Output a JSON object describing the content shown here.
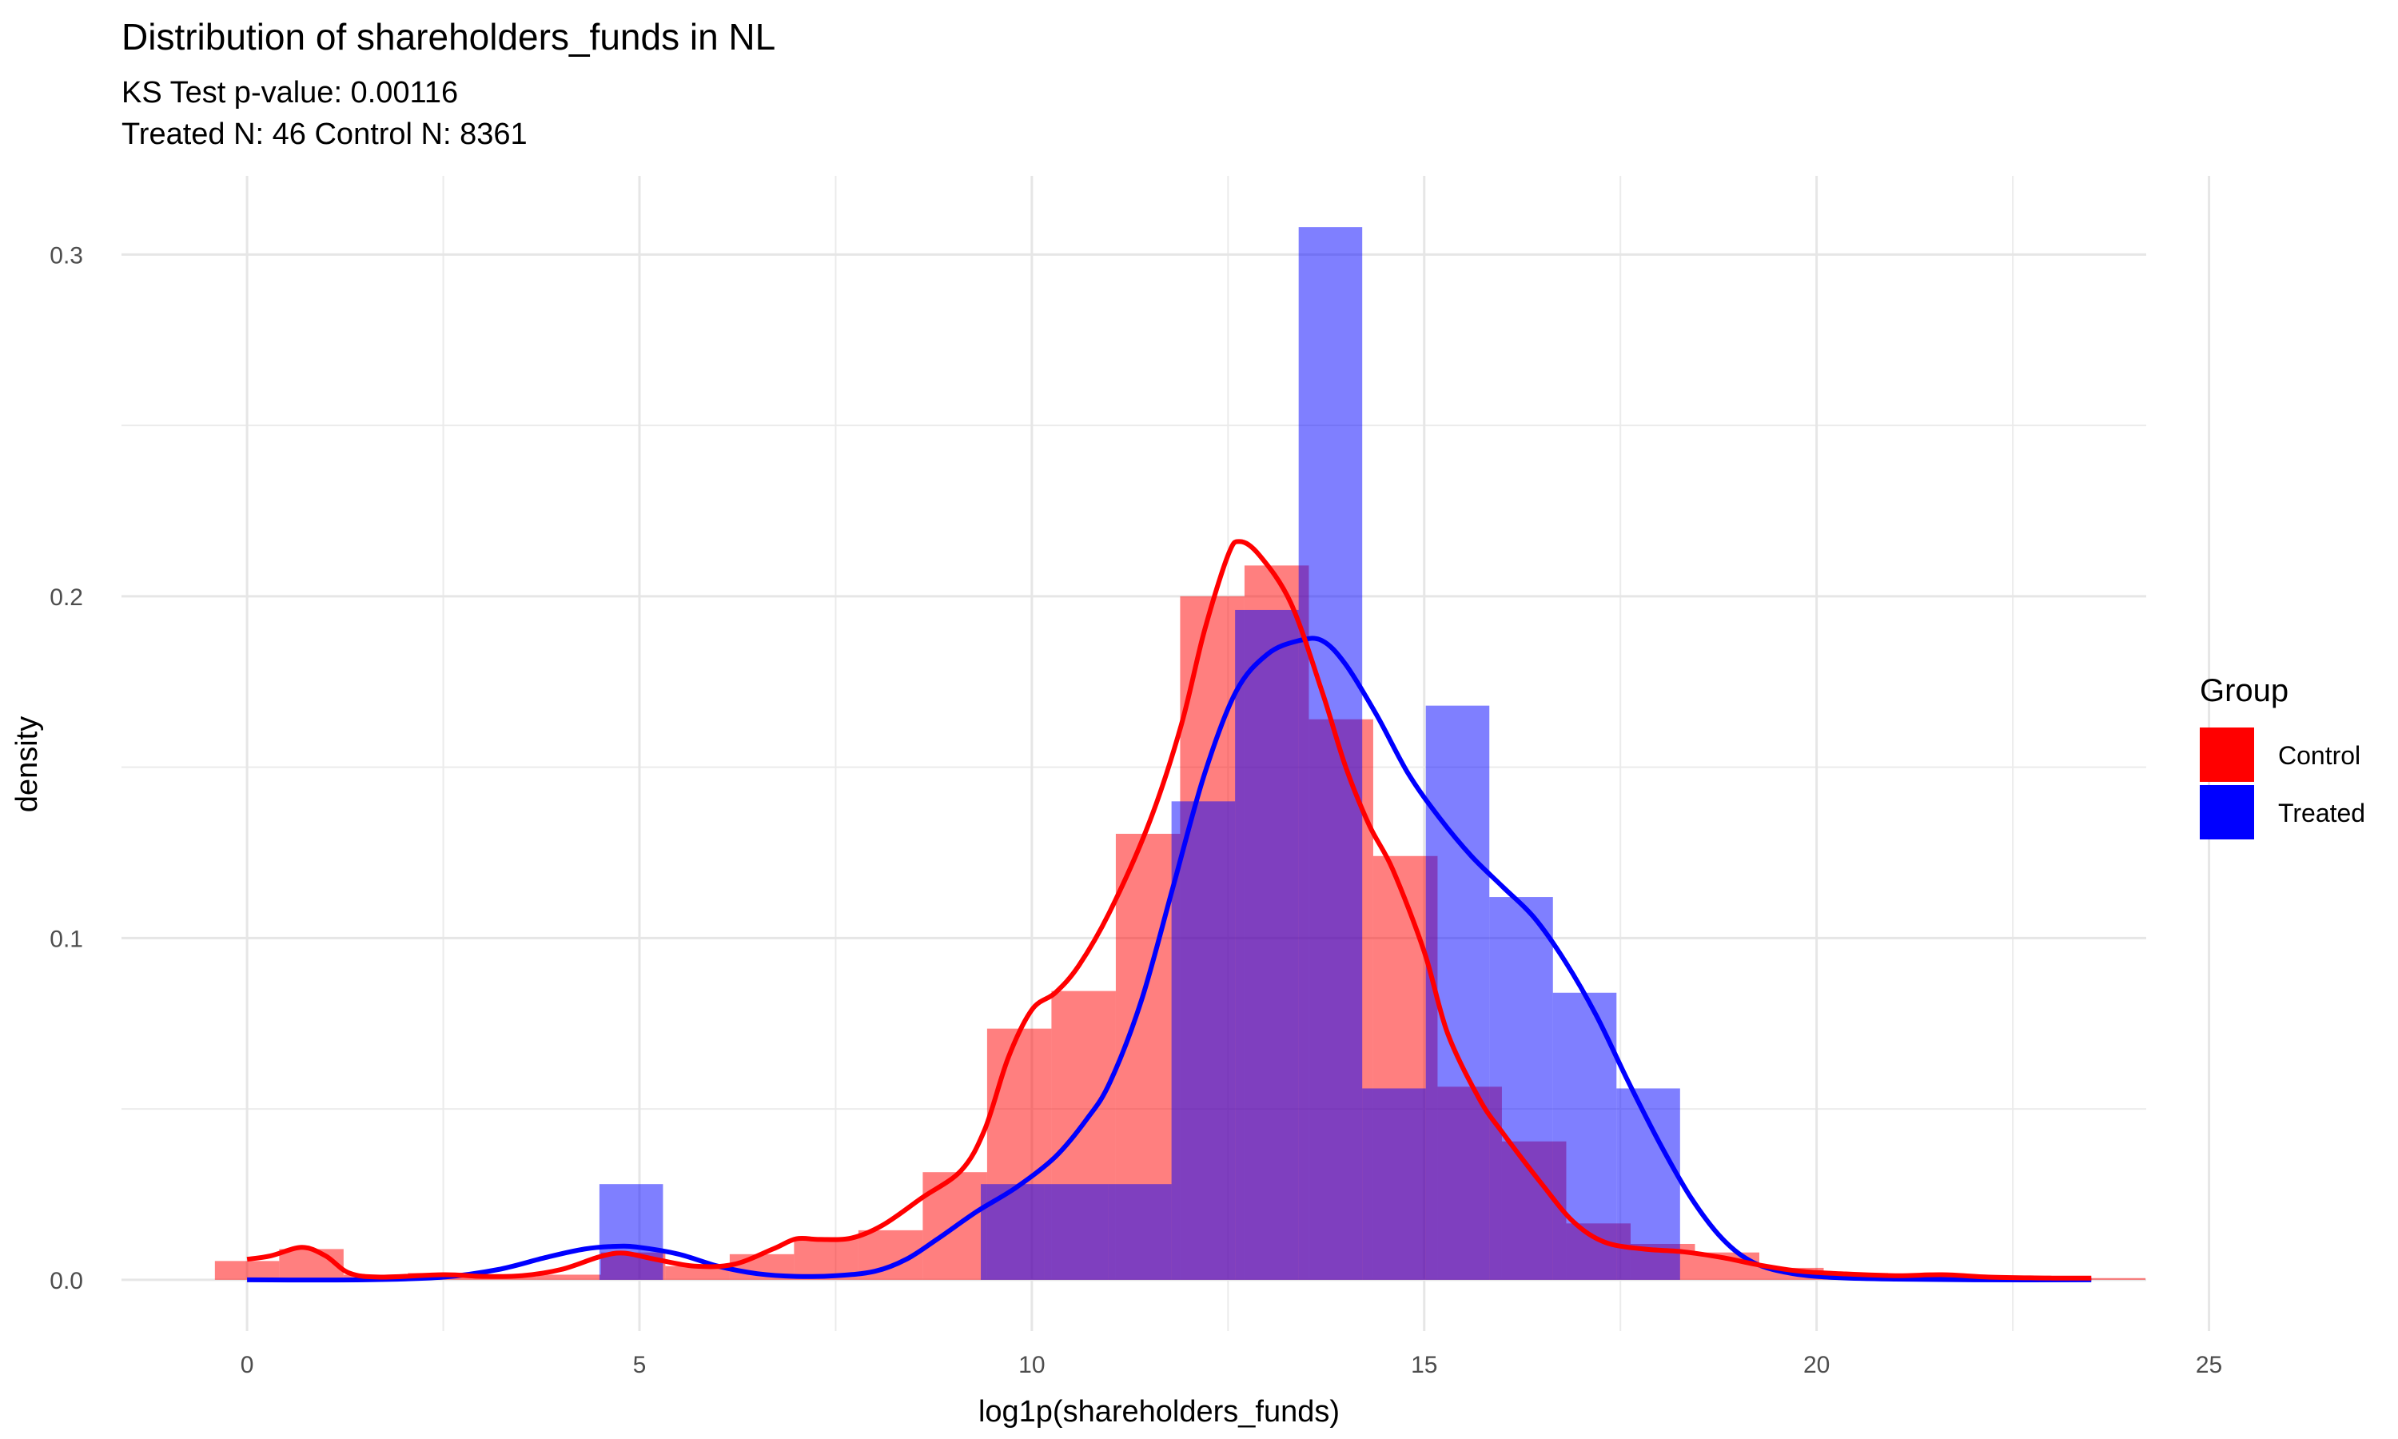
{
  "chart_data": {
    "type": "histogram",
    "title": "Distribution of shareholders_funds in NL",
    "subtitle_lines": [
      "KS Test p-value: 0.00116",
      "Treated N: 46 Control N: 8361"
    ],
    "xlabel": "log1p(shareholders_funds)",
    "ylabel": "density",
    "xlim": [
      -1.6,
      24.2
    ],
    "ylim": [
      -0.015,
      0.323
    ],
    "x_ticks": [
      0,
      5,
      10,
      15,
      20,
      25
    ],
    "x_tick_labels": [
      "0",
      "5",
      "10",
      "15",
      "20",
      "25"
    ],
    "y_ticks": [
      0.0,
      0.1,
      0.2,
      0.3
    ],
    "y_tick_labels": [
      "0.0",
      "0.1",
      "0.2",
      "0.3"
    ],
    "grid": true,
    "legend": {
      "title": "Group",
      "position": "right"
    },
    "series": [
      {
        "name": "Control",
        "color": "#FF0000",
        "bin_width": 0.82,
        "bins": [
          {
            "x0": -0.41,
            "x1": 0.41,
            "density": 0.0055
          },
          {
            "x0": 0.41,
            "x1": 1.23,
            "density": 0.009
          },
          {
            "x0": 1.23,
            "x1": 2.05,
            "density": 0.0015
          },
          {
            "x0": 2.05,
            "x1": 2.87,
            "density": 0.002
          },
          {
            "x0": 2.87,
            "x1": 3.69,
            "density": 0.001
          },
          {
            "x0": 3.69,
            "x1": 4.51,
            "density": 0.0015
          },
          {
            "x0": 4.51,
            "x1": 5.33,
            "density": 0.008
          },
          {
            "x0": 5.33,
            "x1": 6.15,
            "density": 0.004
          },
          {
            "x0": 6.15,
            "x1": 6.97,
            "density": 0.0075
          },
          {
            "x0": 6.97,
            "x1": 7.79,
            "density": 0.0125
          },
          {
            "x0": 7.79,
            "x1": 8.61,
            "density": 0.0145
          },
          {
            "x0": 8.61,
            "x1": 9.43,
            "density": 0.0315
          },
          {
            "x0": 9.43,
            "x1": 10.25,
            "density": 0.0735
          },
          {
            "x0": 10.25,
            "x1": 11.07,
            "density": 0.0845
          },
          {
            "x0": 11.07,
            "x1": 11.89,
            "density": 0.1305
          },
          {
            "x0": 11.89,
            "x1": 12.71,
            "density": 0.2
          },
          {
            "x0": 12.71,
            "x1": 13.53,
            "density": 0.209
          },
          {
            "x0": 13.53,
            "x1": 14.35,
            "density": 0.164
          },
          {
            "x0": 14.35,
            "x1": 15.17,
            "density": 0.124
          },
          {
            "x0": 15.17,
            "x1": 15.99,
            "density": 0.0565
          },
          {
            "x0": 15.99,
            "x1": 16.81,
            "density": 0.0405
          },
          {
            "x0": 16.81,
            "x1": 17.63,
            "density": 0.0165
          },
          {
            "x0": 17.63,
            "x1": 18.45,
            "density": 0.0105
          },
          {
            "x0": 18.45,
            "x1": 19.27,
            "density": 0.008
          },
          {
            "x0": 19.27,
            "x1": 20.09,
            "density": 0.0035
          },
          {
            "x0": 20.09,
            "x1": 20.91,
            "density": 0.002
          },
          {
            "x0": 20.91,
            "x1": 21.73,
            "density": 0.0015
          },
          {
            "x0": 21.73,
            "x1": 22.55,
            "density": 0.001
          },
          {
            "x0": 22.55,
            "x1": 23.37,
            "density": 0.0008
          },
          {
            "x0": 23.37,
            "x1": 24.19,
            "density": 0.0005
          }
        ],
        "density_curve": [
          [
            0.0,
            0.006
          ],
          [
            0.3,
            0.007
          ],
          [
            0.7,
            0.0095
          ],
          [
            1.0,
            0.007
          ],
          [
            1.3,
            0.002
          ],
          [
            1.7,
            0.0008
          ],
          [
            2.5,
            0.0015
          ],
          [
            3.0,
            0.001
          ],
          [
            3.5,
            0.0012
          ],
          [
            4.0,
            0.003
          ],
          [
            4.5,
            0.0068
          ],
          [
            4.8,
            0.0078
          ],
          [
            5.2,
            0.006
          ],
          [
            5.7,
            0.004
          ],
          [
            6.2,
            0.0045
          ],
          [
            6.7,
            0.009
          ],
          [
            7.0,
            0.012
          ],
          [
            7.3,
            0.0118
          ],
          [
            7.7,
            0.0122
          ],
          [
            8.1,
            0.016
          ],
          [
            8.6,
            0.024
          ],
          [
            9.1,
            0.032
          ],
          [
            9.4,
            0.044
          ],
          [
            9.7,
            0.065
          ],
          [
            10.0,
            0.079
          ],
          [
            10.3,
            0.084
          ],
          [
            10.6,
            0.092
          ],
          [
            11.0,
            0.108
          ],
          [
            11.5,
            0.134
          ],
          [
            11.9,
            0.162
          ],
          [
            12.2,
            0.19
          ],
          [
            12.5,
            0.212
          ],
          [
            12.65,
            0.216
          ],
          [
            12.9,
            0.212
          ],
          [
            13.3,
            0.198
          ],
          [
            13.7,
            0.172
          ],
          [
            14.0,
            0.15
          ],
          [
            14.3,
            0.133
          ],
          [
            14.6,
            0.12
          ],
          [
            15.0,
            0.096
          ],
          [
            15.3,
            0.072
          ],
          [
            15.7,
            0.053
          ],
          [
            16.0,
            0.043
          ],
          [
            16.5,
            0.028
          ],
          [
            16.9,
            0.017
          ],
          [
            17.3,
            0.011
          ],
          [
            17.8,
            0.009
          ],
          [
            18.3,
            0.0082
          ],
          [
            18.8,
            0.0065
          ],
          [
            19.3,
            0.0042
          ],
          [
            19.8,
            0.0025
          ],
          [
            20.3,
            0.0018
          ],
          [
            21.0,
            0.0012
          ],
          [
            21.6,
            0.0015
          ],
          [
            22.2,
            0.0008
          ],
          [
            23.0,
            0.0005
          ],
          [
            23.5,
            0.0005
          ]
        ]
      },
      {
        "name": "Treated",
        "color": "#0000FF",
        "bin_width": 0.81,
        "bins": [
          {
            "x0": 4.49,
            "x1": 5.3,
            "density": 0.028
          },
          {
            "x0": 9.35,
            "x1": 10.16,
            "density": 0.028
          },
          {
            "x0": 10.16,
            "x1": 10.97,
            "density": 0.028
          },
          {
            "x0": 10.97,
            "x1": 11.78,
            "density": 0.028
          },
          {
            "x0": 11.78,
            "x1": 12.59,
            "density": 0.14
          },
          {
            "x0": 12.59,
            "x1": 13.4,
            "density": 0.196
          },
          {
            "x0": 13.4,
            "x1": 14.21,
            "density": 0.308
          },
          {
            "x0": 14.21,
            "x1": 15.02,
            "density": 0.056
          },
          {
            "x0": 15.02,
            "x1": 15.83,
            "density": 0.168
          },
          {
            "x0": 15.83,
            "x1": 16.64,
            "density": 0.112
          },
          {
            "x0": 16.64,
            "x1": 17.45,
            "density": 0.084
          },
          {
            "x0": 17.45,
            "x1": 18.26,
            "density": 0.056
          }
        ],
        "density_curve": [
          [
            0.0,
            0.0
          ],
          [
            1.5,
            0.0
          ],
          [
            2.5,
            0.0008
          ],
          [
            3.2,
            0.003
          ],
          [
            3.8,
            0.0065
          ],
          [
            4.3,
            0.009
          ],
          [
            4.7,
            0.0098
          ],
          [
            5.0,
            0.0095
          ],
          [
            5.5,
            0.0075
          ],
          [
            6.0,
            0.004
          ],
          [
            6.5,
            0.0018
          ],
          [
            7.0,
            0.001
          ],
          [
            7.5,
            0.0012
          ],
          [
            8.0,
            0.0025
          ],
          [
            8.4,
            0.006
          ],
          [
            8.8,
            0.012
          ],
          [
            9.3,
            0.02
          ],
          [
            9.8,
            0.027
          ],
          [
            10.3,
            0.036
          ],
          [
            10.7,
            0.047
          ],
          [
            11.0,
            0.058
          ],
          [
            11.4,
            0.082
          ],
          [
            11.8,
            0.115
          ],
          [
            12.2,
            0.148
          ],
          [
            12.6,
            0.172
          ],
          [
            13.0,
            0.183
          ],
          [
            13.4,
            0.187
          ],
          [
            13.7,
            0.187
          ],
          [
            14.0,
            0.18
          ],
          [
            14.4,
            0.165
          ],
          [
            14.8,
            0.148
          ],
          [
            15.2,
            0.135
          ],
          [
            15.6,
            0.124
          ],
          [
            16.0,
            0.115
          ],
          [
            16.4,
            0.106
          ],
          [
            16.8,
            0.093
          ],
          [
            17.2,
            0.077
          ],
          [
            17.6,
            0.058
          ],
          [
            18.0,
            0.04
          ],
          [
            18.4,
            0.024
          ],
          [
            18.8,
            0.012
          ],
          [
            19.2,
            0.005
          ],
          [
            19.7,
            0.0018
          ],
          [
            20.3,
            0.0006
          ],
          [
            21.0,
            0.0002
          ],
          [
            22.0,
            0.0
          ],
          [
            23.5,
            0.0
          ]
        ]
      }
    ]
  }
}
